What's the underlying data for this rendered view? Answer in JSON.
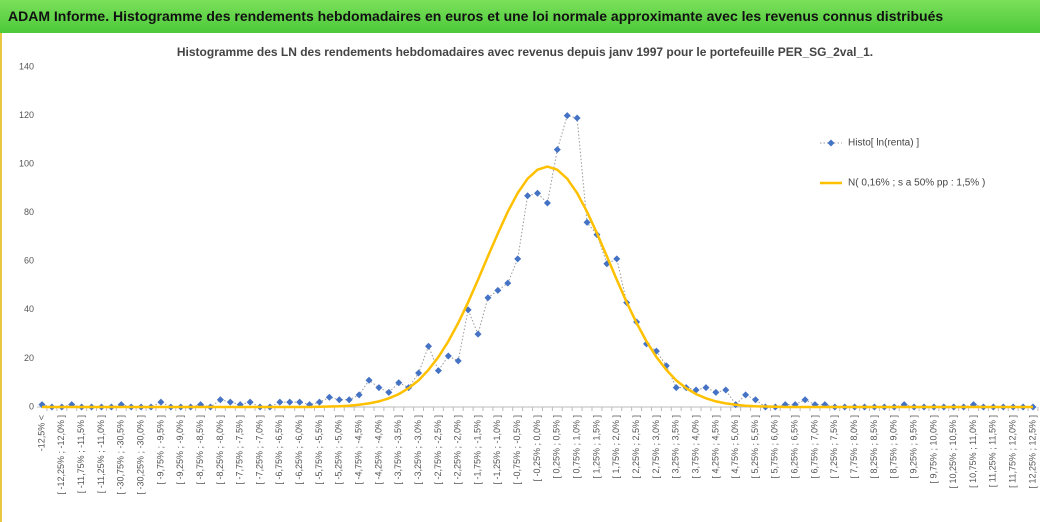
{
  "header": {
    "title": "ADAM Informe. Histogramme des rendements hebdomadaires en euros et une loi normale approximante avec les revenus connus distribués"
  },
  "chart_data": {
    "type": "line",
    "title": "Histogramme des LN des rendements hebdomadaires avec revenus depuis janv 1997 pour le portefeuille PER_SG_2val_1.",
    "categories": [
      "-12,5% <",
      null,
      "[ -12,25% ; -12,0% ]",
      null,
      "[ -11,75% ; -11,5% ]",
      null,
      "[ -11,25% ; -11,0% ]",
      null,
      "[ -30,75% ; -30,5% ]",
      null,
      "[ -30,25% ; -30,0% ]",
      null,
      "[ -9,75% ; -9,5% ]",
      null,
      "[ -9,25% ; -9,0% ]",
      null,
      "[ -8,75% ; -8,5% ]",
      null,
      "[ -8,25% ; -8,0% ]",
      null,
      "[ -7,75% ; -7,5% ]",
      null,
      "[ -7,25% ; -7,0% ]",
      null,
      "[ -6,75% ; -6,5% ]",
      null,
      "[ -6,25% ; -6,0% ]",
      null,
      "[ -5,75% ; -5,5% ]",
      null,
      "[ -5,25% ; -5,0% ]",
      null,
      "[ -4,75% ; -4,5% ]",
      null,
      "[ -4,25% ; -4,0% ]",
      null,
      "[ -3,75% ; -3,5% ]",
      null,
      "[ -3,25% ; -3,0% ]",
      null,
      "[ -2,75% ; -2,5% ]",
      null,
      "[ -2,25% ; -2,0% ]",
      null,
      "[ -1,75% ; -1,5% ]",
      null,
      "[ -1,25% ; -1,0% ]",
      null,
      "[ -0,75% ; -0,5% ]",
      null,
      "[ -0,25% ; 0,0% ]",
      null,
      "[ 0,25% ; 0,5% ]",
      null,
      "[ 0,75% ; 1,0% ]",
      null,
      "[ 1,25% ; 1,5% ]",
      null,
      "[ 1,75% ; 2,0% ]",
      null,
      "[ 2,25% ; 2,5% ]",
      null,
      "[ 2,75% ; 3,0% ]",
      null,
      "[ 3,25% ; 3,5% ]",
      null,
      "[ 3,75% ; 4,0% ]",
      null,
      "[ 4,25% ; 4,5% ]",
      null,
      "[ 4,75% ; 5,0% ]",
      null,
      "[ 5,25% ; 5,5% ]",
      null,
      "[ 5,75% ; 6,0% ]",
      null,
      "[ 6,25% ; 6,5% ]",
      null,
      "[ 6,75% ; 7,0% ]",
      null,
      "[ 7,25% ; 7,5% ]",
      null,
      "[ 7,75% ; 8,0% ]",
      null,
      "[ 8,25% ; 8,5% ]",
      null,
      "[ 8,75% ; 9,0% ]",
      null,
      "[ 9,25% ; 9,5% ]",
      null,
      "[ 9,75% ; 10,0% ]",
      null,
      "[ 10,25% ; 10,5% ]",
      null,
      "[ 10,75% ; 11,0% ]",
      null,
      "[ 11,25% ; 11,5% ]",
      null,
      "[ 11,75% ; 12,0% ]",
      null,
      "[ 12,25% ; 12,5% ]"
    ],
    "series": [
      {
        "name": "Histo[ ln(renta) ]",
        "color": "#4472c4",
        "values": [
          1,
          0,
          0,
          1,
          0,
          0,
          0,
          0,
          1,
          0,
          0,
          0,
          2,
          0,
          0,
          0,
          1,
          0,
          3,
          2,
          1,
          2,
          0,
          0,
          2,
          2,
          2,
          1,
          2,
          4,
          3,
          3,
          5,
          11,
          8,
          6,
          10,
          8,
          14,
          25,
          15,
          21,
          19,
          40,
          30,
          45,
          48,
          51,
          61,
          87,
          88,
          84,
          106,
          120,
          119,
          76,
          71,
          59,
          61,
          43,
          35,
          26,
          23,
          17,
          8,
          8,
          7,
          8,
          6,
          7,
          1,
          5,
          3,
          0,
          0,
          1,
          1,
          3,
          1,
          1,
          0,
          0,
          0,
          0,
          0,
          0,
          0,
          1,
          0,
          0,
          0,
          0,
          0,
          0,
          1,
          0,
          0,
          0,
          0,
          0,
          0
        ]
      },
      {
        "name": "N( 0,16% ; s a 50% pp : 1,5% )",
        "color": "#ffc000",
        "values": [
          0,
          0,
          0,
          0,
          0,
          0,
          0,
          0,
          0,
          0,
          0,
          0,
          0,
          0,
          0,
          0,
          0,
          0,
          0,
          0,
          0,
          0,
          0,
          0,
          0,
          0,
          0,
          0,
          0.1,
          0.2,
          0.3,
          0.5,
          0.9,
          1.5,
          2.3,
          3.6,
          5.3,
          7.8,
          11.0,
          15.3,
          20.6,
          27.0,
          34.6,
          43.1,
          52.4,
          62.0,
          71.5,
          80.4,
          88.1,
          94.0,
          97.7,
          99,
          97.7,
          94.0,
          88.1,
          80.4,
          71.5,
          62.0,
          52.4,
          43.1,
          34.6,
          27.0,
          20.6,
          15.3,
          11.0,
          7.8,
          5.3,
          3.6,
          2.3,
          1.5,
          0.9,
          0.5,
          0.3,
          0.2,
          0.1,
          0,
          0,
          0,
          0,
          0,
          0,
          0,
          0,
          0,
          0,
          0,
          0,
          0,
          0,
          0,
          0,
          0,
          0,
          0,
          0,
          0,
          0,
          0,
          0,
          0,
          0
        ]
      }
    ],
    "ylim": [
      0,
      140
    ],
    "yticks": [
      0,
      20,
      40,
      60,
      80,
      100,
      120,
      140
    ],
    "grid": false,
    "legend": "right"
  }
}
